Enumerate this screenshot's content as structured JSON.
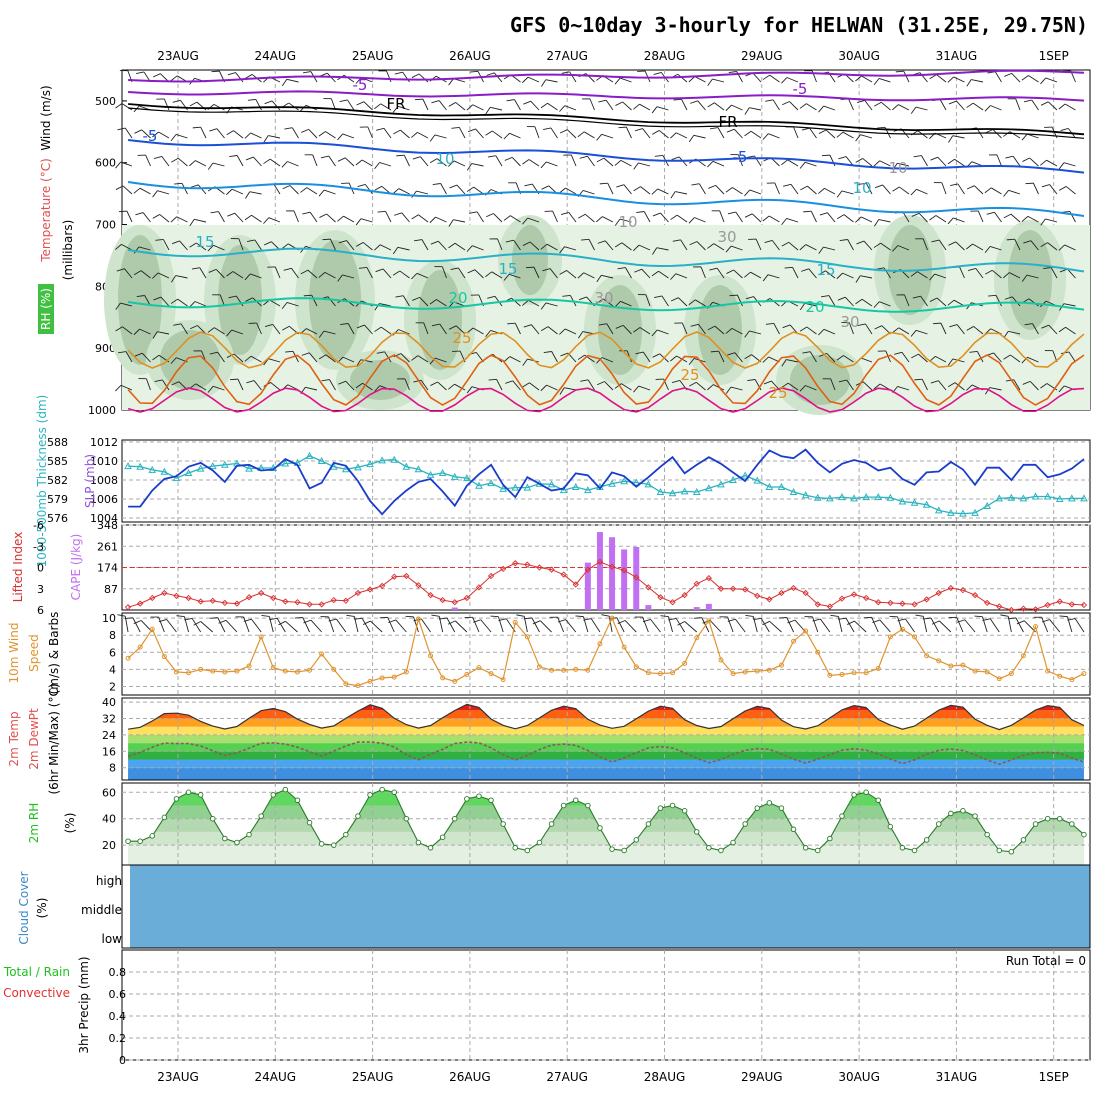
{
  "title": "GFS 0~10day 3-hourly for HELWAN (31.25E, 29.75N)",
  "days": [
    "23AUG",
    "24AUG",
    "25AUG",
    "26AUG",
    "27AUG",
    "28AUG",
    "29AUG",
    "30AUG",
    "31AUG",
    "1SEP"
  ],
  "colors": {
    "purple": "#8a1cc8",
    "blue": "#1c4fd8",
    "cyan": "#29b0c8",
    "teal": "#16c7a4",
    "green": "#20c060",
    "orange": "#e09020",
    "darkorange": "#e06010",
    "magenta": "#e0108a",
    "slp": "#1a3ccc",
    "thick": "#2ab4c0",
    "li": "#d83030",
    "cape": "#c070f0",
    "wind": "#e09430",
    "rh2m": "#40d840",
    "cloud": "#6aadd8"
  },
  "panels": {
    "upper": {
      "ylabel_parts": [
        "Wind (m/s)",
        "Temperature (°C)",
        "RH (%)"
      ],
      "ylabel_mb": "(millibars)",
      "ticks": [
        "500",
        "600",
        "700",
        "800",
        "900",
        "1000"
      ],
      "contour_labels": [
        "-5",
        "-5",
        "FR",
        "FR",
        "-5",
        "-5",
        "10",
        "10",
        "15",
        "15",
        "15",
        "20",
        "20",
        "25",
        "25",
        "25",
        "10",
        "10",
        "30",
        "30",
        "30"
      ]
    },
    "slp": {
      "ylabel_left": "1000-500mb Thickness (dm)",
      "ylabel_right": "SLP (mb)",
      "ticks_left": [
        "588",
        "585",
        "582",
        "579",
        "576"
      ],
      "ticks_right": [
        "1012",
        "1010",
        "1008",
        "1006",
        "1004"
      ]
    },
    "cape": {
      "ylabel_left": "Lifted Index",
      "ylabel_right": "CAPE (J/kg)",
      "ticks_left": [
        "-6",
        "-3",
        "0",
        "3",
        "6"
      ],
      "ticks_right": [
        "348",
        "261",
        "174",
        "87"
      ]
    },
    "wind": {
      "ylabel_parts": [
        "10m Wind",
        "Speed",
        "(m/s) & Barbs"
      ],
      "ticks": [
        "10",
        "8",
        "6",
        "4",
        "2"
      ]
    },
    "temp": {
      "ylabel_parts": [
        "2m Temp",
        "2m DewPt",
        "(6hr Min/Max) (°C)"
      ],
      "ticks": [
        "40",
        "32",
        "24",
        "16",
        "8"
      ]
    },
    "rh": {
      "ylabel_parts": [
        "2m RH",
        "(%)"
      ],
      "ticks": [
        "60",
        "40",
        "20"
      ]
    },
    "cloud": {
      "ylabel_parts": [
        "Cloud Cover",
        "(%)"
      ],
      "levels": [
        "high",
        "middle",
        "low"
      ]
    },
    "precip": {
      "ylabel_parts": [
        "Total / Rain",
        "Convective",
        "3hr Precip (mm)"
      ],
      "ticks": [
        "0.8",
        "0.6",
        "0.4",
        "0.2",
        "0"
      ],
      "run_total": "Run Total = 0"
    }
  },
  "chart_data": [
    {
      "type": "line",
      "title": "SLP / 1000-500mb Thickness",
      "series": [
        {
          "name": "SLP (mb)",
          "values": [
            1005.2,
            1005.2,
            1006.9,
            1008.1,
            1008.4,
            1009.4,
            1009.8,
            1009.0,
            1007.8,
            1009.5,
            1009.6,
            1009.0,
            1009.1,
            1010.2,
            1009.6,
            1007.1,
            1007.7,
            1009.8,
            1009.5,
            1007.9,
            1005.8,
            1004.4,
            1005.8,
            1006.9,
            1007.8,
            1008.1,
            1006.8,
            1005.3,
            1007.4,
            1008.6,
            1009.6,
            1007.5,
            1006.2,
            1008.3,
            1007.6,
            1006.9,
            1007.1,
            1008.7,
            1008.5,
            1007.1,
            1008.8,
            1008.4,
            1007.3,
            1008.3,
            1009.4,
            1010.4,
            1008.7,
            1009.6,
            1010.4,
            1009.7,
            1008.8,
            1007.9,
            1009.6,
            1011.1,
            1010.5,
            1010.3,
            1011.2,
            1009.8,
            1008.8,
            1009.7,
            1010.1,
            1009.8,
            1009.0,
            1009.3,
            1008.1,
            1007.5,
            1008.8,
            1008.9,
            1009.9,
            1009.1,
            1007.5,
            1009.3,
            1009.3,
            1008.0,
            1009.6,
            1009.6,
            1008.3,
            1008.6,
            1009.2,
            1010.2
          ]
        },
        {
          "name": "1000-500mb Thickness (dm)",
          "values": [
            584.2,
            584.1,
            583.6,
            583.3,
            582.3,
            583.1,
            583.8,
            584.2,
            584.4,
            584.6,
            583.8,
            583.9,
            583.9,
            584.6,
            584.7,
            585.8,
            585.0,
            584.1,
            583.7,
            584.0,
            584.5,
            585.1,
            585.2,
            584.1,
            583.7,
            582.8,
            583.1,
            582.5,
            582.3,
            581.1,
            581.5,
            580.6,
            580.8,
            580.8,
            581.4,
            581.3,
            580.4,
            580.9,
            580.4,
            580.9,
            581.4,
            581.8,
            581.6,
            581.3,
            580.1,
            579.9,
            580.2,
            580.1,
            580.7,
            581.3,
            582.0,
            582.7,
            581.9,
            580.9,
            580.9,
            580.1,
            579.6,
            579.2,
            579.1,
            579.3,
            579.1,
            579.3,
            579.3,
            579.2,
            578.6,
            578.4,
            578.1,
            577.2,
            576.8,
            576.7,
            576.8,
            577.9,
            579.1,
            579.2,
            579.1,
            579.4,
            579.4,
            579.0,
            579.1,
            579.1
          ]
        }
      ]
    },
    {
      "type": "bar",
      "title": "CAPE / Lifted Index",
      "series": [
        {
          "name": "CAPE (J/kg)",
          "values": [
            0,
            0,
            0,
            0,
            0,
            0,
            0,
            0,
            0,
            0,
            0,
            0,
            0,
            0,
            0,
            0,
            0,
            0,
            0,
            0,
            0,
            0,
            0,
            0,
            0,
            0,
            0,
            10,
            0,
            0,
            0,
            0,
            0,
            0,
            0,
            0,
            0,
            0,
            194,
            319,
            298,
            248,
            258,
            20,
            0,
            0,
            0,
            12,
            25,
            0,
            0,
            0,
            0,
            0,
            0,
            0,
            0,
            0,
            0,
            0,
            0,
            0,
            0,
            0,
            0,
            0,
            0,
            0,
            0,
            0,
            0,
            0,
            0,
            0,
            0,
            0,
            0,
            0,
            0,
            0
          ]
        },
        {
          "name": "Lifted Index",
          "values": [
            5.6,
            5.1,
            4.3,
            3.6,
            4.0,
            4.3,
            4.8,
            4.7,
            5.0,
            5.1,
            4.2,
            3.6,
            4.3,
            4.8,
            4.9,
            5.2,
            5.2,
            4.6,
            4.7,
            3.6,
            3.1,
            2.6,
            1.3,
            1.2,
            2.5,
            3.9,
            4.6,
            4.9,
            4.3,
            2.8,
            1.2,
            0.2,
            -0.6,
            -0.4,
            0.0,
            0.3,
            1.0,
            2.4,
            0.3,
            -0.8,
            -0.1,
            0.4,
            1.4,
            2.8,
            4.2,
            4.9,
            3.9,
            2.3,
            1.5,
            3.0,
            3.0,
            3.1,
            4.0,
            4.5,
            3.6,
            2.9,
            3.6,
            5.2,
            5.5,
            4.4,
            3.8,
            4.3,
            4.9,
            5.0,
            5.1,
            5.2,
            4.5,
            3.6,
            2.9,
            3.2,
            3.9,
            5.0,
            5.5,
            6.0,
            5.8,
            5.9,
            5.3,
            4.8,
            5.2,
            5.3
          ]
        }
      ]
    },
    {
      "type": "line",
      "title": "10m Wind Speed",
      "series": [
        {
          "name": "10m Wind Speed (m/s)",
          "values": [
            5.3,
            6.6,
            8.7,
            5.5,
            3.7,
            3.6,
            4.0,
            3.8,
            3.7,
            3.8,
            4.4,
            7.8,
            4.2,
            3.8,
            3.7,
            3.9,
            5.8,
            4.0,
            2.3,
            2.1,
            2.6,
            3.0,
            3.1,
            3.7,
            9.9,
            5.6,
            3.0,
            2.6,
            3.4,
            4.2,
            3.5,
            2.8,
            9.5,
            7.8,
            4.3,
            3.9,
            3.9,
            4.0,
            3.9,
            7.0,
            10.0,
            6.6,
            4.3,
            3.6,
            3.5,
            3.6,
            4.7,
            7.7,
            9.7,
            5.1,
            3.5,
            3.7,
            3.8,
            3.9,
            4.5,
            7.3,
            8.5,
            6.0,
            3.3,
            3.4,
            3.6,
            3.6,
            4.1,
            7.8,
            8.7,
            7.8,
            5.6,
            5.0,
            4.4,
            4.5,
            3.8,
            3.7,
            2.9,
            3.5,
            5.6,
            9.0,
            3.8,
            3.2,
            2.8,
            3.5
          ]
        }
      ]
    },
    {
      "type": "area",
      "title": "2m Temp / 2m DewPt",
      "series": [
        {
          "name": "2m Temp (°C)",
          "values": [
            26.8,
            27.7,
            30.8,
            34.4,
            34.6,
            33.6,
            30.6,
            28.3,
            26.9,
            28.1,
            32.1,
            35.8,
            36.9,
            35.3,
            31.7,
            29.1,
            27.3,
            28.4,
            32.1,
            35.6,
            38.7,
            37.0,
            32.1,
            29.0,
            27.3,
            28.6,
            32.4,
            35.9,
            38.9,
            37.4,
            31.7,
            28.7,
            27.0,
            28.6,
            32.3,
            36.0,
            38.0,
            36.8,
            31.6,
            28.8,
            27.2,
            28.2,
            31.9,
            35.6,
            38.0,
            37.0,
            31.4,
            28.6,
            27.1,
            28.1,
            31.9,
            35.6,
            37.9,
            36.9,
            31.2,
            28.0,
            26.9,
            28.5,
            32.3,
            36.2,
            38.3,
            37.3,
            31.5,
            28.8,
            26.8,
            28.3,
            32.2,
            36.1,
            38.4,
            37.5,
            31.7,
            28.7,
            26.6,
            28.7,
            32.4,
            36.1,
            38.3,
            37.4,
            31.4,
            28.6
          ]
        },
        {
          "name": "2m DewPt (°C)",
          "values": [
            13.5,
            15.5,
            18.0,
            20.0,
            19.8,
            19.8,
            18.6,
            16.3,
            13.9,
            15.2,
            17.5,
            19.9,
            20.1,
            19.5,
            18.0,
            15.8,
            13.6,
            16.1,
            18.6,
            20.5,
            20.5,
            20.0,
            18.1,
            14.3,
            11.9,
            14.6,
            17.0,
            19.8,
            20.5,
            20.1,
            17.7,
            14.3,
            11.8,
            14.0,
            16.9,
            19.0,
            19.5,
            18.9,
            16.4,
            13.2,
            10.8,
            12.8,
            15.3,
            17.7,
            18.3,
            17.6,
            15.3,
            12.6,
            10.4,
            12.0,
            14.5,
            16.5,
            17.3,
            17.0,
            14.7,
            12.2,
            10.3,
            12.2,
            14.3,
            16.6,
            17.2,
            16.6,
            14.7,
            12.2,
            10.0,
            11.8,
            14.6,
            16.5,
            17.1,
            16.4,
            14.3,
            11.8,
            9.7,
            11.8,
            14.0,
            15.3,
            15.5,
            15.0,
            12.8,
            10.7
          ]
        }
      ]
    },
    {
      "type": "area",
      "title": "2m RH",
      "series": [
        {
          "name": "2m RH (%)",
          "values": [
            23,
            23,
            27,
            41,
            55,
            60,
            58,
            40,
            25,
            22,
            28,
            42,
            58,
            62,
            54,
            37,
            21,
            20,
            28,
            42,
            58,
            62,
            60,
            40,
            22,
            18,
            26,
            40,
            55,
            57,
            54,
            36,
            18,
            16,
            22,
            36,
            50,
            54,
            50,
            33,
            17,
            16,
            24,
            36,
            48,
            50,
            46,
            30,
            18,
            16,
            22,
            36,
            48,
            52,
            48,
            32,
            18,
            16,
            25,
            42,
            58,
            60,
            54,
            34,
            18,
            16,
            24,
            36,
            44,
            46,
            42,
            28,
            16,
            15,
            24,
            36,
            40,
            40,
            36,
            28
          ]
        }
      ]
    },
    {
      "type": "bar",
      "title": "3hr Precip (mm)",
      "series": [
        {
          "name": "Total / Rain",
          "values": [
            0,
            0,
            0,
            0,
            0,
            0,
            0,
            0,
            0,
            0
          ]
        },
        {
          "name": "Convective",
          "values": [
            0,
            0,
            0,
            0,
            0,
            0,
            0,
            0,
            0,
            0
          ]
        }
      ],
      "categories": [
        "23AUG",
        "24AUG",
        "25AUG",
        "26AUG",
        "27AUG",
        "28AUG",
        "29AUG",
        "30AUG",
        "31AUG",
        "1SEP"
      ],
      "ylim": [
        0,
        1
      ]
    }
  ]
}
